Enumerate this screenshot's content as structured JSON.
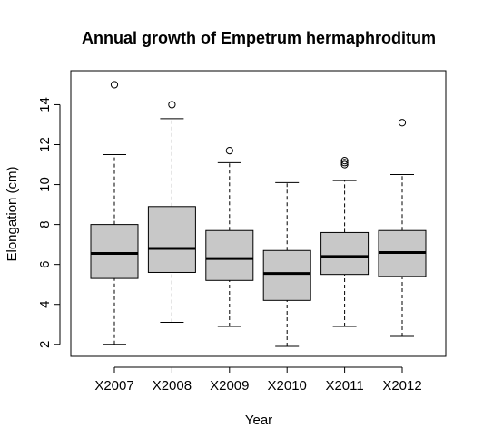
{
  "chart_data": {
    "type": "boxplot",
    "title": "Annual growth of Empetrum hermaphroditum",
    "xlabel": "Year",
    "ylabel": "Elongation (cm)",
    "ylim": [
      1.4,
      15.7
    ],
    "yticks": [
      2,
      4,
      6,
      8,
      10,
      12,
      14
    ],
    "grid": false,
    "box_fill": "#c8c8c8",
    "categories": [
      "X2007",
      "X2008",
      "X2009",
      "X2010",
      "X2011",
      "X2012"
    ],
    "series": [
      {
        "category": "X2007",
        "min": 2.0,
        "q1": 5.3,
        "median": 6.55,
        "q3": 8.0,
        "max": 11.5,
        "outliers": [
          15.0
        ]
      },
      {
        "category": "X2008",
        "min": 3.1,
        "q1": 5.6,
        "median": 6.8,
        "q3": 8.9,
        "max": 13.3,
        "outliers": [
          14.0
        ]
      },
      {
        "category": "X2009",
        "min": 2.9,
        "q1": 5.2,
        "median": 6.3,
        "q3": 7.7,
        "max": 11.1,
        "outliers": [
          11.7
        ]
      },
      {
        "category": "X2010",
        "min": 1.9,
        "q1": 4.2,
        "median": 5.55,
        "q3": 6.7,
        "max": 10.1,
        "outliers": []
      },
      {
        "category": "X2011",
        "min": 2.9,
        "q1": 5.5,
        "median": 6.4,
        "q3": 7.6,
        "max": 10.2,
        "outliers": [
          11.0,
          11.1,
          11.2
        ]
      },
      {
        "category": "X2012",
        "min": 2.4,
        "q1": 5.4,
        "median": 6.6,
        "q3": 7.7,
        "max": 10.5,
        "outliers": [
          13.1
        ]
      }
    ]
  }
}
